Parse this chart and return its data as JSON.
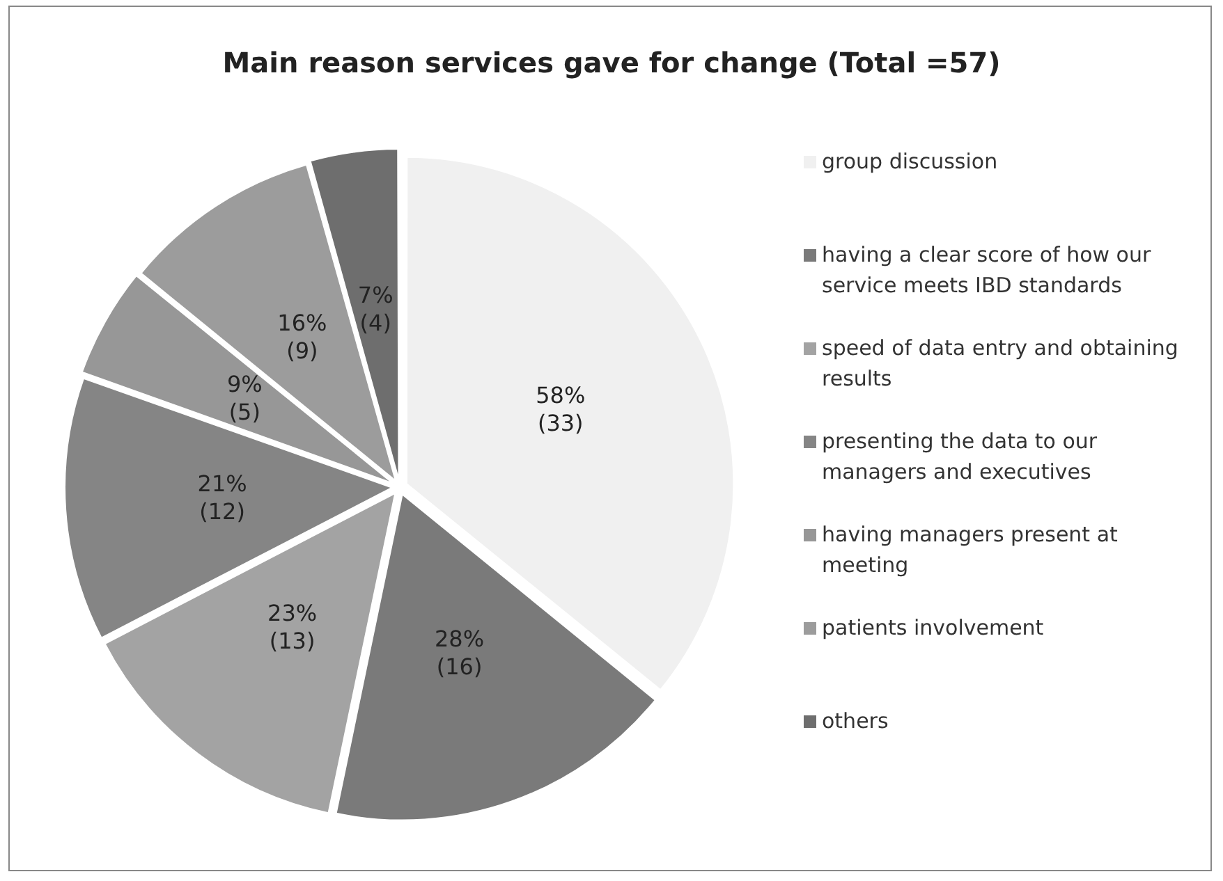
{
  "chart_data": {
    "type": "pie",
    "title": "Main reason services gave for change (Total =57)",
    "categories": [
      "group discussion",
      "having a clear score of  how our service meets IBD standards",
      "speed of data entry and obtaining results",
      "presenting the data to our managers and executives",
      "having managers present at meeting",
      "patients involvement",
      "others"
    ],
    "values": [
      33,
      16,
      13,
      12,
      5,
      9,
      4
    ],
    "value_labels": [
      "58% (33)",
      "28% (16)",
      "23% (13)",
      "21% (12)",
      "9% (5)",
      "16% (9)",
      "7% (4)"
    ],
    "colors": [
      "#f0f0f0",
      "#7a7a7a",
      "#a3a3a3",
      "#858585",
      "#979797",
      "#9c9c9c",
      "#6e6e6e"
    ],
    "legend": "right"
  }
}
